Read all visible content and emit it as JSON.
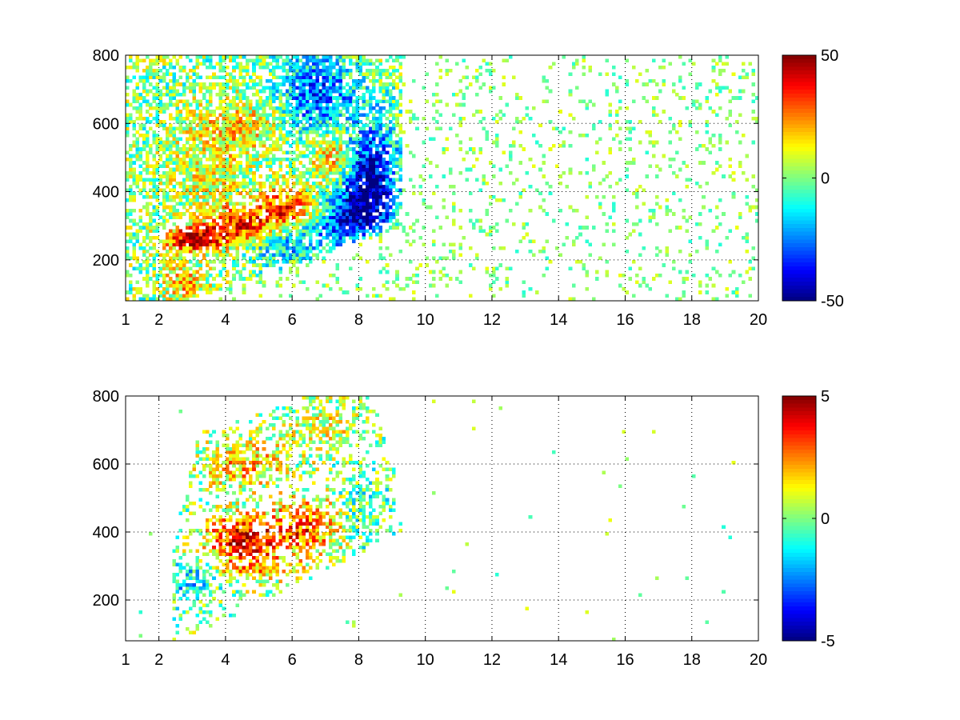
{
  "chart_data": [
    {
      "type": "heatmap",
      "xlim": [
        1,
        20
      ],
      "ylim": [
        80,
        800
      ],
      "xticks": [
        1,
        2,
        4,
        6,
        8,
        10,
        12,
        14,
        16,
        18,
        20
      ],
      "yticks": [
        200,
        400,
        600,
        800
      ],
      "grid": true,
      "colormap": "jet",
      "colorbar": {
        "range": [
          -50,
          50
        ],
        "ticks": [
          50,
          0,
          -50
        ],
        "placement": "right"
      },
      "blobs": [
        {
          "x": 3.0,
          "y": 260,
          "sx": 0.6,
          "sy": 25,
          "v": 40,
          "w": 1.0
        },
        {
          "x": 4.5,
          "y": 290,
          "sx": 0.8,
          "sy": 40,
          "v": 42,
          "w": 1.0
        },
        {
          "x": 6.0,
          "y": 350,
          "sx": 0.7,
          "sy": 50,
          "v": 38,
          "w": 1.0
        },
        {
          "x": 7.3,
          "y": 470,
          "sx": 0.5,
          "sy": 90,
          "v": 30,
          "w": 0.9
        },
        {
          "x": 5.5,
          "y": 260,
          "sx": 1.0,
          "sy": 40,
          "v": -28,
          "w": 0.9
        },
        {
          "x": 7.5,
          "y": 350,
          "sx": 0.9,
          "sy": 70,
          "v": -38,
          "w": 1.0
        },
        {
          "x": 8.3,
          "y": 450,
          "sx": 0.6,
          "sy": 110,
          "v": -40,
          "w": 1.0
        },
        {
          "x": 6.8,
          "y": 680,
          "sx": 0.8,
          "sy": 90,
          "v": -30,
          "w": 0.9
        },
        {
          "x": 4.5,
          "y": 600,
          "sx": 1.0,
          "sy": 60,
          "v": 14,
          "w": 0.9
        },
        {
          "x": 2.8,
          "y": 130,
          "sx": 0.5,
          "sy": 40,
          "v": 18,
          "w": 0.9
        },
        {
          "x": 3.5,
          "y": 450,
          "sx": 0.9,
          "sy": 100,
          "v": 10,
          "w": 0.8
        }
      ],
      "region": [
        [
          1.0,
          80
        ],
        [
          3.0,
          80
        ],
        [
          9.3,
          300
        ],
        [
          9.3,
          800
        ],
        [
          1.0,
          800
        ]
      ]
    },
    {
      "type": "heatmap",
      "xlim": [
        1,
        20
      ],
      "ylim": [
        80,
        800
      ],
      "xticks": [
        1,
        2,
        4,
        6,
        8,
        10,
        12,
        14,
        16,
        18,
        20
      ],
      "yticks": [
        200,
        400,
        600,
        800
      ],
      "grid": true,
      "colormap": "jet",
      "colorbar": {
        "range": [
          -5,
          5
        ],
        "ticks": [
          5,
          0,
          -5
        ],
        "placement": "right"
      },
      "blobs": [
        {
          "x": 4.5,
          "y": 380,
          "sx": 0.8,
          "sy": 50,
          "v": 4,
          "w": 1.0
        },
        {
          "x": 6.5,
          "y": 420,
          "sx": 0.8,
          "sy": 60,
          "v": 3,
          "w": 0.9
        },
        {
          "x": 5.0,
          "y": 290,
          "sx": 1.0,
          "sy": 30,
          "v": 1.5,
          "w": 0.9
        },
        {
          "x": 3.0,
          "y": 260,
          "sx": 0.5,
          "sy": 40,
          "v": -2,
          "w": 0.9
        },
        {
          "x": 8.0,
          "y": 450,
          "sx": 0.6,
          "sy": 80,
          "v": -1,
          "w": 0.7
        },
        {
          "x": 4.5,
          "y": 600,
          "sx": 0.9,
          "sy": 50,
          "v": 2,
          "w": 0.8
        },
        {
          "x": 7.0,
          "y": 700,
          "sx": 0.8,
          "sy": 60,
          "v": 1,
          "w": 0.7
        }
      ],
      "region": [
        [
          2.4,
          100
        ],
        [
          3.2,
          100
        ],
        [
          9.3,
          400
        ],
        [
          9.2,
          560
        ],
        [
          8.3,
          800
        ],
        [
          6.5,
          800
        ],
        [
          3.2,
          690
        ],
        [
          2.4,
          350
        ]
      ]
    }
  ]
}
